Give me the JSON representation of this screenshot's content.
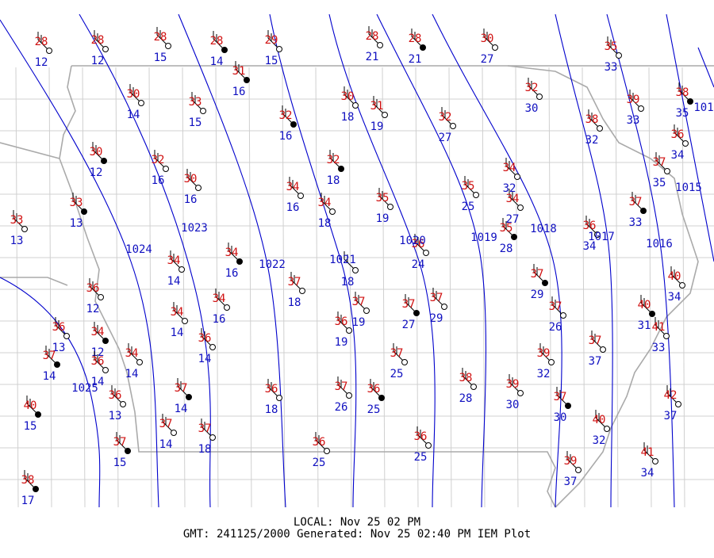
{
  "map": {
    "stations": [
      {
        "temp": 28,
        "dew": 12
      },
      {
        "temp": 28,
        "dew": 12
      },
      {
        "temp": 28,
        "dew": 15
      },
      {
        "temp": 28,
        "dew": 14
      },
      {
        "temp": 29,
        "dew": 15
      },
      {
        "temp": 28,
        "dew": 21
      },
      {
        "temp": 28,
        "dew": 21
      },
      {
        "temp": 30,
        "dew": 27
      },
      {
        "temp": 35,
        "dew": 33
      },
      {
        "temp": 31,
        "dew": 16
      },
      {
        "temp": 30,
        "dew": 14
      },
      {
        "temp": 33,
        "dew": 15
      },
      {
        "temp": 32,
        "dew": 16
      },
      {
        "temp": 30,
        "dew": 18
      },
      {
        "temp": 31,
        "dew": 19
      },
      {
        "temp": 32,
        "dew": 27
      },
      {
        "temp": 32,
        "dew": 30
      },
      {
        "temp": 39,
        "dew": 33
      },
      {
        "temp": 38,
        "dew": 35
      },
      {
        "temp": 38,
        "dew": 32
      },
      {
        "temp": 36,
        "dew": 34
      },
      {
        "temp": 30,
        "dew": 12
      },
      {
        "temp": 32,
        "dew": 16
      },
      {
        "temp": 30,
        "dew": 16
      },
      {
        "temp": 32,
        "dew": 18
      },
      {
        "temp": 37,
        "dew": 35
      },
      {
        "temp": 34,
        "dew": 32
      },
      {
        "temp": 33,
        "dew": 13
      },
      {
        "temp": 34,
        "dew": 16
      },
      {
        "temp": 34,
        "dew": 18
      },
      {
        "temp": 35,
        "dew": 19
      },
      {
        "temp": 35,
        "dew": 25
      },
      {
        "temp": 34,
        "dew": 27
      },
      {
        "temp": 37,
        "dew": 33
      },
      {
        "temp": 33,
        "dew": 13
      },
      {
        "temp": 36,
        "dew": 24
      },
      {
        "temp": 35,
        "dew": 28
      },
      {
        "temp": 36,
        "dew": 34
      },
      {
        "temp": 34,
        "dew": 14
      },
      {
        "temp": 34,
        "dew": 16
      },
      {
        "temp": 37,
        "dew": 18
      },
      {
        "dew": 18
      },
      {
        "temp": 37,
        "dew": 29
      },
      {
        "temp": 40,
        "dew": 34
      },
      {
        "temp": 36,
        "dew": 12
      },
      {
        "temp": 34,
        "dew": 16
      },
      {
        "temp": 34,
        "dew": 14
      },
      {
        "temp": 37,
        "dew": 19
      },
      {
        "temp": 37,
        "dew": 27
      },
      {
        "temp": 37,
        "dew": 29
      },
      {
        "temp": 37,
        "dew": 26
      },
      {
        "temp": 40,
        "dew": 31
      },
      {
        "temp": 41,
        "dew": 33
      },
      {
        "temp": 36,
        "dew": 13
      },
      {
        "temp": 34,
        "dew": 12
      },
      {
        "temp": 36,
        "dew": 14
      },
      {
        "temp": 34,
        "dew": 14
      },
      {
        "temp": 37,
        "dew": 14
      },
      {
        "temp": 36,
        "dew": 14
      },
      {
        "temp": 36,
        "dew": 19
      },
      {
        "temp": 37,
        "dew": 25
      },
      {
        "temp": 39,
        "dew": 32
      },
      {
        "temp": 37,
        "dew": 37
      },
      {
        "temp": 37,
        "dew": 14
      },
      {
        "temp": 36,
        "dew": 18
      },
      {
        "temp": 37,
        "dew": 26
      },
      {
        "temp": 36,
        "dew": 25
      },
      {
        "temp": 38,
        "dew": 28
      },
      {
        "temp": 39,
        "dew": 30
      },
      {
        "temp": 37,
        "dew": 30
      },
      {
        "temp": 42,
        "dew": 37
      },
      {
        "temp": 36,
        "dew": 13
      },
      {
        "temp": 40,
        "dew": 15
      },
      {
        "temp": 37,
        "dew": 14
      },
      {
        "temp": 37,
        "dew": 18
      },
      {
        "temp": 40,
        "dew": 32
      },
      {
        "temp": 36,
        "dew": 25
      },
      {
        "temp": 36,
        "dew": 25
      },
      {
        "temp": 37,
        "dew": 15
      },
      {
        "temp": 41,
        "dew": 34
      },
      {
        "temp": 39,
        "dew": 37
      },
      {
        "temp": 38,
        "dew": 17
      }
    ],
    "isobars": [
      "1025",
      "1024",
      "1023",
      "1022",
      "1021",
      "1020",
      "1019",
      "1018",
      "1017",
      "1016",
      "1015",
      "101"
    ]
  },
  "footer": {
    "local": "LOCAL: Nov 25 02 PM",
    "gmt": "GMT: 241125/2000 Generated: Nov 25 02:40 PM IEM Plot"
  }
}
